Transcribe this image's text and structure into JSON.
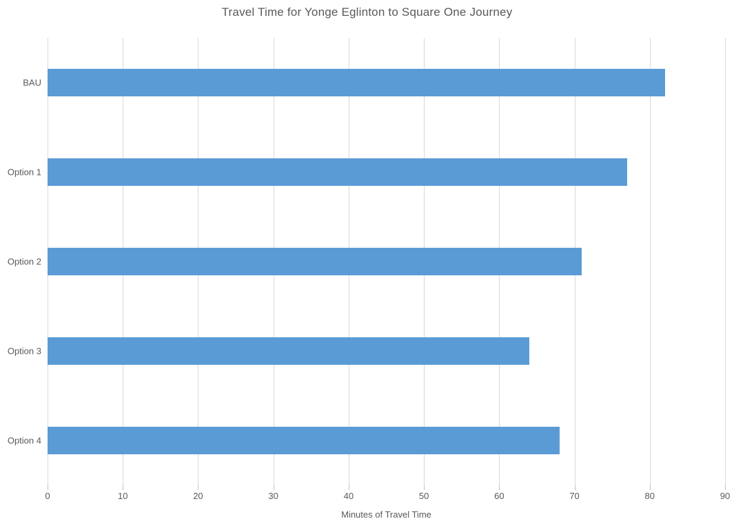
{
  "chart_data": {
    "type": "bar",
    "orientation": "horizontal",
    "title": "Travel Time for Yonge Eglinton to Square One Journey",
    "xlabel": "Minutes of Travel Time",
    "ylabel": "",
    "categories": [
      "BAU",
      "Option 1",
      "Option 2",
      "Option 3",
      "Option 4"
    ],
    "values": [
      82,
      77,
      71,
      64,
      68
    ],
    "xlim": [
      0,
      90
    ],
    "xticks": [
      0,
      10,
      20,
      30,
      40,
      50,
      60,
      70,
      80,
      90
    ],
    "grid": "vertical-gridlines",
    "legend": "none",
    "colors": {
      "bar": "#5B9BD5",
      "gridline": "#D9D9D9",
      "tick_mark": "#BFBFBF",
      "text": "#595959",
      "background": "#FFFFFF"
    }
  }
}
